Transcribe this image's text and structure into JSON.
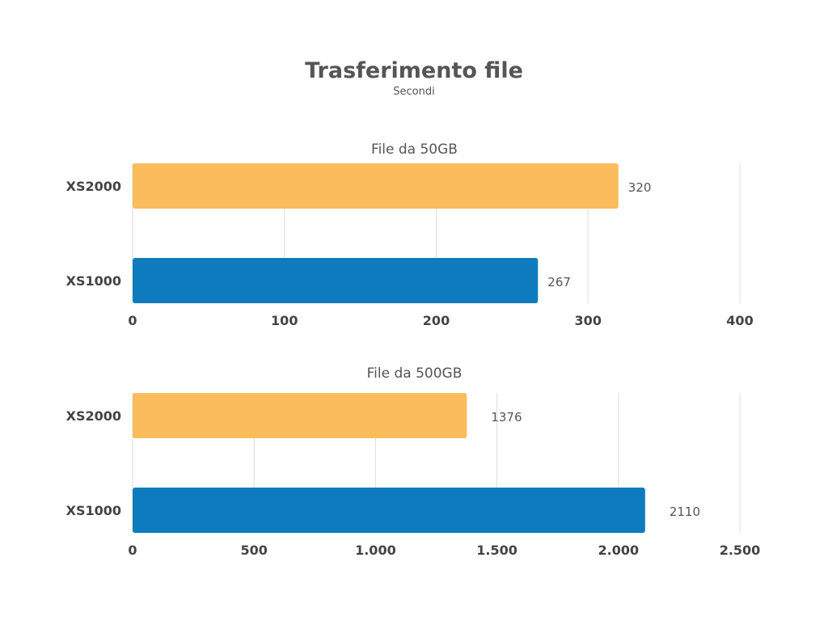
{
  "title": "Trasferimento file",
  "subtitle": "Secondi",
  "colors": {
    "XS2000": "#FBBD5B",
    "XS1000": "#0E7BBE",
    "grid": "#dddddd"
  },
  "chart_data": [
    {
      "type": "bar",
      "orientation": "horizontal",
      "title": "File da 50GB",
      "categories": [
        "XS2000",
        "XS1000"
      ],
      "values": [
        320,
        267
      ],
      "value_labels": [
        "320",
        "267"
      ],
      "xlim": [
        0,
        400
      ],
      "ticks": [
        0,
        100,
        200,
        300,
        400
      ],
      "tick_labels": [
        "0",
        "100",
        "200",
        "300",
        "400"
      ],
      "grid": true
    },
    {
      "type": "bar",
      "orientation": "horizontal",
      "title": "File da 500GB",
      "categories": [
        "XS2000",
        "XS1000"
      ],
      "values": [
        1376,
        2110
      ],
      "value_labels": [
        "1376",
        "2110"
      ],
      "xlim": [
        0,
        2500
      ],
      "ticks": [
        0,
        500,
        1000,
        1500,
        2000,
        2500
      ],
      "tick_labels": [
        "0",
        "500",
        "1.000",
        "1.500",
        "2.000",
        "2.500"
      ],
      "grid": true
    }
  ]
}
